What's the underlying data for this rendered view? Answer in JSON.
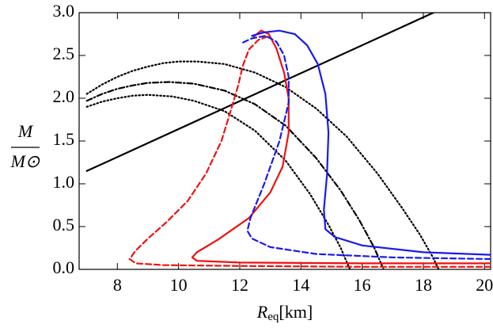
{
  "chart_data": {
    "type": "line",
    "ylabel": [
      "M",
      "M⊙"
    ],
    "xlabel": [
      "R",
      "eq",
      "[km]"
    ],
    "xlim": [
      6.75,
      20.2
    ],
    "ylim": [
      0,
      3
    ],
    "xticks": [
      8,
      10,
      12,
      14,
      16,
      18,
      20
    ],
    "yticks": [
      {
        "value": 0,
        "label": "0.0"
      },
      0.5,
      {
        "value": 1,
        "label": "1.0"
      },
      1.5,
      {
        "value": 2,
        "label": "2.0"
      },
      2.5,
      {
        "value": 3,
        "label": "3.0"
      }
    ],
    "series": [
      {
        "color": "#000000",
        "style": "solid",
        "x": [
          7,
          18.33
        ],
        "values": [
          1.15,
          3.0
        ]
      },
      {
        "color": "#000000",
        "style": "dotted",
        "x": [
          7,
          7.5,
          8,
          8.5,
          9,
          9.5,
          10,
          10.6,
          11.5,
          12.5,
          13.5,
          14.5,
          15.5,
          16.5,
          17.3,
          17.9,
          18.3,
          18.5
        ],
        "values": [
          2.05,
          2.16,
          2.25,
          2.32,
          2.37,
          2.41,
          2.43,
          2.43,
          2.4,
          2.3,
          2.13,
          1.88,
          1.55,
          1.12,
          0.72,
          0.4,
          0.15,
          0.0
        ]
      },
      {
        "color": "#000000",
        "style": "dashdot",
        "x": [
          7,
          7.5,
          8,
          8.5,
          9,
          9.7,
          10.5,
          11.5,
          12.5,
          13.5,
          14.5,
          15.3,
          15.9,
          16.4,
          16.7
        ],
        "values": [
          1.97,
          2.05,
          2.11,
          2.15,
          2.18,
          2.19,
          2.17,
          2.09,
          1.93,
          1.68,
          1.3,
          0.92,
          0.58,
          0.25,
          0.0
        ]
      },
      {
        "color": "#000000",
        "style": "dotted",
        "x": [
          7,
          7.5,
          8,
          8.5,
          9,
          9.8,
          10.5,
          11.5,
          12.5,
          13.5,
          14.3,
          14.9,
          15.3,
          15.6
        ],
        "values": [
          1.9,
          1.96,
          2.0,
          2.03,
          2.04,
          2.02,
          1.97,
          1.85,
          1.62,
          1.27,
          0.88,
          0.52,
          0.25,
          0.0
        ]
      },
      {
        "color": "#ee1111",
        "style": "dashed",
        "x": [
          20.2,
          16,
          12,
          9.5,
          8.6,
          8.4,
          8.6,
          9.0,
          9.6,
          10.3,
          10.9,
          11.4,
          11.7,
          11.95,
          12.1,
          12.3,
          12.6,
          12.9
        ],
        "values": [
          0.03,
          0.03,
          0.04,
          0.05,
          0.07,
          0.12,
          0.22,
          0.36,
          0.55,
          0.8,
          1.12,
          1.5,
          1.85,
          2.15,
          2.38,
          2.57,
          2.68,
          2.72
        ]
      },
      {
        "color": "#ee1111",
        "style": "solid",
        "x": [
          20.2,
          16,
          12,
          10.6,
          10.45,
          10.6,
          11.3,
          12.3,
          13.0,
          13.4,
          13.6,
          13.6,
          13.45,
          13.2,
          12.95,
          12.7,
          12.45
        ],
        "values": [
          0.07,
          0.07,
          0.08,
          0.1,
          0.14,
          0.2,
          0.35,
          0.6,
          0.9,
          1.2,
          1.6,
          2.0,
          2.3,
          2.58,
          2.75,
          2.79,
          2.72
        ]
      },
      {
        "color": "#1a1aee",
        "style": "dashed",
        "x": [
          20.2,
          17,
          14.5,
          13,
          12.4,
          12.25,
          12.35,
          12.8,
          13.3,
          13.6,
          13.6,
          13.45,
          13.2,
          12.85,
          12.4,
          12.1
        ],
        "values": [
          0.12,
          0.14,
          0.18,
          0.26,
          0.36,
          0.45,
          0.6,
          1.0,
          1.5,
          1.95,
          2.25,
          2.5,
          2.66,
          2.73,
          2.7,
          2.65
        ]
      },
      {
        "color": "#1a1aee",
        "style": "solid",
        "x": [
          20.2,
          18,
          16,
          15.1,
          14.8,
          14.75,
          14.85,
          14.9,
          14.8,
          14.55,
          14.2,
          13.8,
          13.3,
          12.8,
          12.4
        ],
        "values": [
          0.17,
          0.2,
          0.28,
          0.38,
          0.47,
          0.7,
          1.1,
          1.6,
          2.05,
          2.4,
          2.62,
          2.75,
          2.79,
          2.77,
          2.73
        ]
      }
    ]
  }
}
